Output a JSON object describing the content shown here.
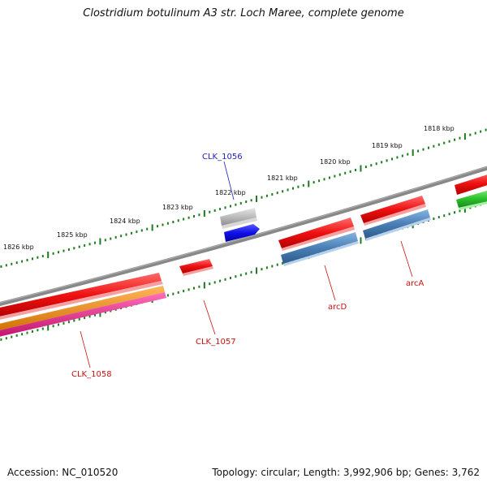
{
  "title": "Clostridium botulinum A3 str. Loch Maree, complete genome",
  "footer": {
    "accession": "Accession: NC_010520",
    "summary": "Topology: circular; Length: 3,992,906 bp; Genes: 3,762"
  },
  "ruler_labels": [
    "1818 kbp",
    "1819 kbp",
    "1820 kbp",
    "1821 kbp",
    "1822 kbp",
    "1823 kbp",
    "1824 kbp",
    "1825 kbp",
    "1826 kbp"
  ],
  "gene_labels": [
    {
      "text": "CLK_1056",
      "color": "#1f1fbf"
    },
    {
      "text": "CLK_1057",
      "color": "#cc1111"
    },
    {
      "text": "CLK_1058",
      "color": "#cc1111"
    },
    {
      "text": "arcD",
      "color": "#cc1111"
    },
    {
      "text": "arcA",
      "color": "#cc1111"
    }
  ],
  "colors": {
    "backbone": "#777777",
    "ticks": "#1e7a1e",
    "red": "#ee1111",
    "blue": "#1010e8",
    "gray": "#b8b8b8",
    "steel": "#4a7fb5",
    "orange": "#f28c1a",
    "magenta": "#e8288c",
    "green": "#2ec42e"
  }
}
